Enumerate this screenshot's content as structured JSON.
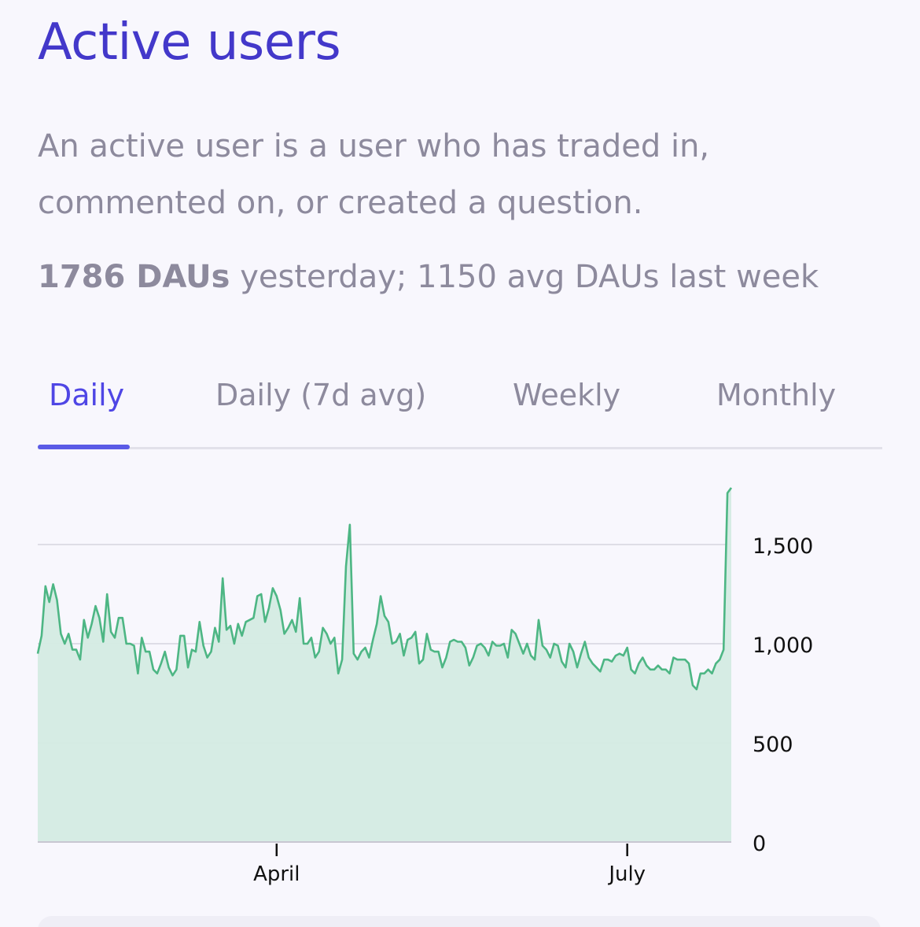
{
  "header": {
    "title": "Active users",
    "description": "An active user is a user who has traded in, commented on, or created a question.",
    "stats_bold": "1786 DAUs",
    "stats_rest": " yesterday; 1150 avg DAUs last week"
  },
  "tabs": [
    {
      "label": "Daily",
      "active": true
    },
    {
      "label": "Daily (7d avg)",
      "active": false
    },
    {
      "label": "Weekly",
      "active": false
    },
    {
      "label": "Monthly",
      "active": false
    }
  ],
  "colors": {
    "title": "#4338ca",
    "active_tab": "#4f46e5",
    "muted_text": "#8d8a9d",
    "line": "#4db684",
    "area": "#d4ebe3"
  },
  "chart_data": {
    "type": "area",
    "title": "",
    "xlabel": "",
    "ylabel": "",
    "ylim": [
      0,
      1800
    ],
    "y_ticks": [
      0,
      500,
      1000,
      1500
    ],
    "y_tick_labels": [
      "0",
      "500",
      "1,000",
      "1,500"
    ],
    "y_axis_position": "right",
    "grid": true,
    "x_tick_labels": [
      {
        "label": "April",
        "day_index": 62
      },
      {
        "label": "July",
        "day_index": 153
      }
    ],
    "series": [
      {
        "values": [
          950,
          1040,
          1290,
          1210,
          1300,
          1220,
          1050,
          1000,
          1050,
          970,
          970,
          920,
          1120,
          1030,
          1100,
          1190,
          1130,
          1010,
          1250,
          1060,
          1030,
          1130,
          1130,
          1000,
          1000,
          990,
          850,
          1030,
          960,
          960,
          870,
          850,
          900,
          960,
          880,
          840,
          870,
          1040,
          1040,
          880,
          970,
          960,
          1110,
          990,
          930,
          960,
          1080,
          1010,
          1330,
          1070,
          1090,
          1000,
          1100,
          1040,
          1110,
          1120,
          1130,
          1240,
          1250,
          1110,
          1180,
          1280,
          1240,
          1170,
          1050,
          1080,
          1120,
          1060,
          1230,
          1000,
          1000,
          1030,
          930,
          960,
          1080,
          1050,
          1000,
          1030,
          850,
          920,
          1390,
          1600,
          950,
          920,
          960,
          980,
          930,
          1020,
          1100,
          1240,
          1140,
          1110,
          1000,
          1010,
          1050,
          940,
          1020,
          1030,
          1060,
          900,
          920,
          1050,
          970,
          960,
          960,
          880,
          930,
          1010,
          1020,
          1010,
          1010,
          980,
          890,
          930,
          990,
          1000,
          980,
          940,
          1010,
          990,
          990,
          1000,
          930,
          1070,
          1050,
          1000,
          950,
          1000,
          940,
          920,
          1120,
          990,
          970,
          930,
          1000,
          990,
          910,
          880,
          1000,
          960,
          880,
          950,
          1010,
          930,
          900,
          880,
          860,
          920,
          920,
          910,
          940,
          950,
          940,
          980,
          870,
          850,
          900,
          930,
          890,
          870,
          870,
          890,
          870,
          870,
          850,
          930,
          920,
          920,
          920,
          900,
          790,
          770,
          850,
          850,
          870,
          850,
          900,
          920,
          970,
          1760,
          1786
        ]
      }
    ],
    "summary": {
      "yesterday_dau": 1786,
      "last_week_avg_dau": 1150
    }
  }
}
